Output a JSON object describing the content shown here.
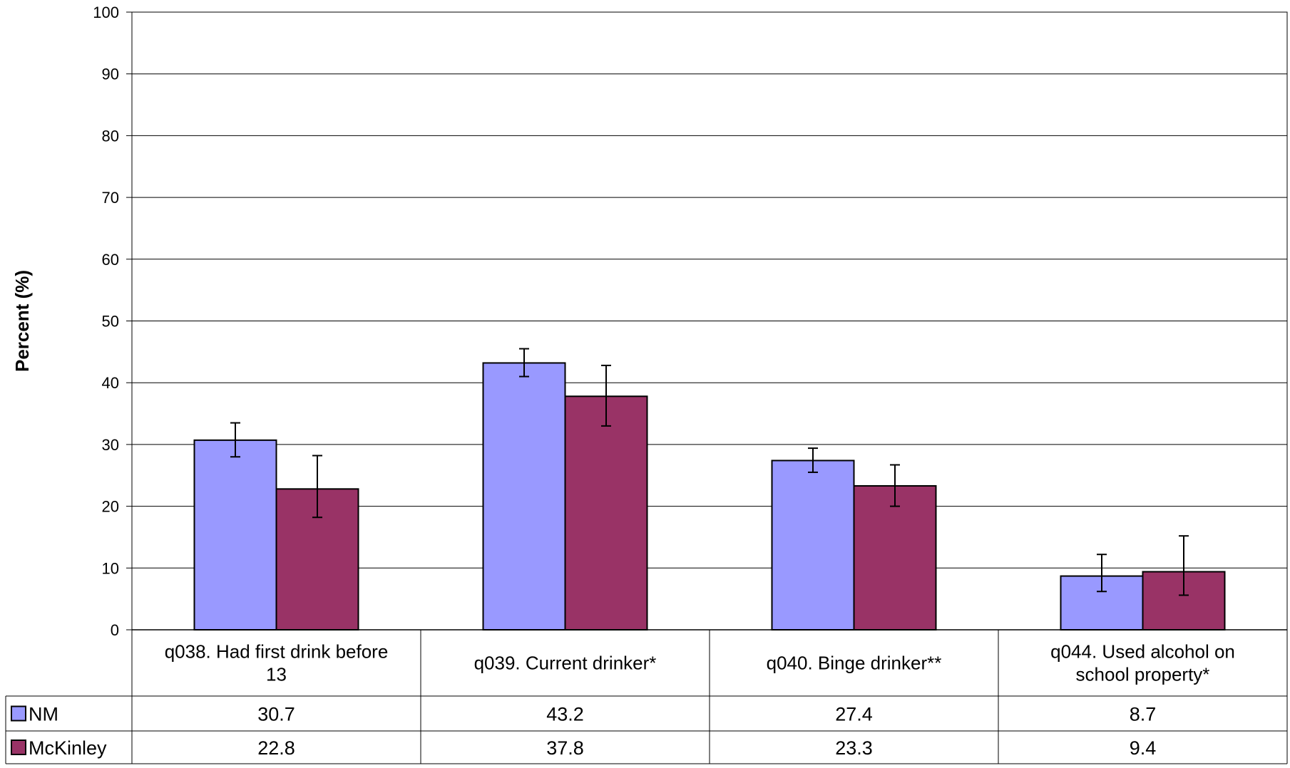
{
  "chart_data": {
    "type": "bar",
    "title": "",
    "ylabel": "Percent (%)",
    "xlabel": "",
    "ylim": [
      0,
      100
    ],
    "yticks": [
      0,
      10,
      20,
      30,
      40,
      50,
      60,
      70,
      80,
      90,
      100
    ],
    "grid": true,
    "legend_placement": "data-table-left",
    "categories": [
      "q038. Had first drink before 13",
      "q039. Current drinker*",
      "q040. Binge drinker**",
      "q044. Used alcohol on school property*"
    ],
    "series": [
      {
        "name": "NM",
        "color": "#9999ff",
        "values": [
          30.7,
          43.2,
          27.4,
          8.7
        ],
        "value_labels": [
          "30.7",
          "43.2",
          "27.4",
          "8.7"
        ],
        "error_low": [
          28.0,
          41.0,
          25.5,
          6.2
        ],
        "error_high": [
          33.5,
          45.5,
          29.4,
          12.2
        ]
      },
      {
        "name": "McKinley",
        "color": "#993366",
        "values": [
          22.8,
          37.8,
          23.3,
          9.4
        ],
        "value_labels": [
          "22.8",
          "37.8",
          "23.3",
          "9.4"
        ],
        "error_low": [
          18.2,
          33.0,
          20.0,
          5.6
        ],
        "error_high": [
          28.2,
          42.8,
          26.7,
          15.2
        ]
      }
    ]
  }
}
